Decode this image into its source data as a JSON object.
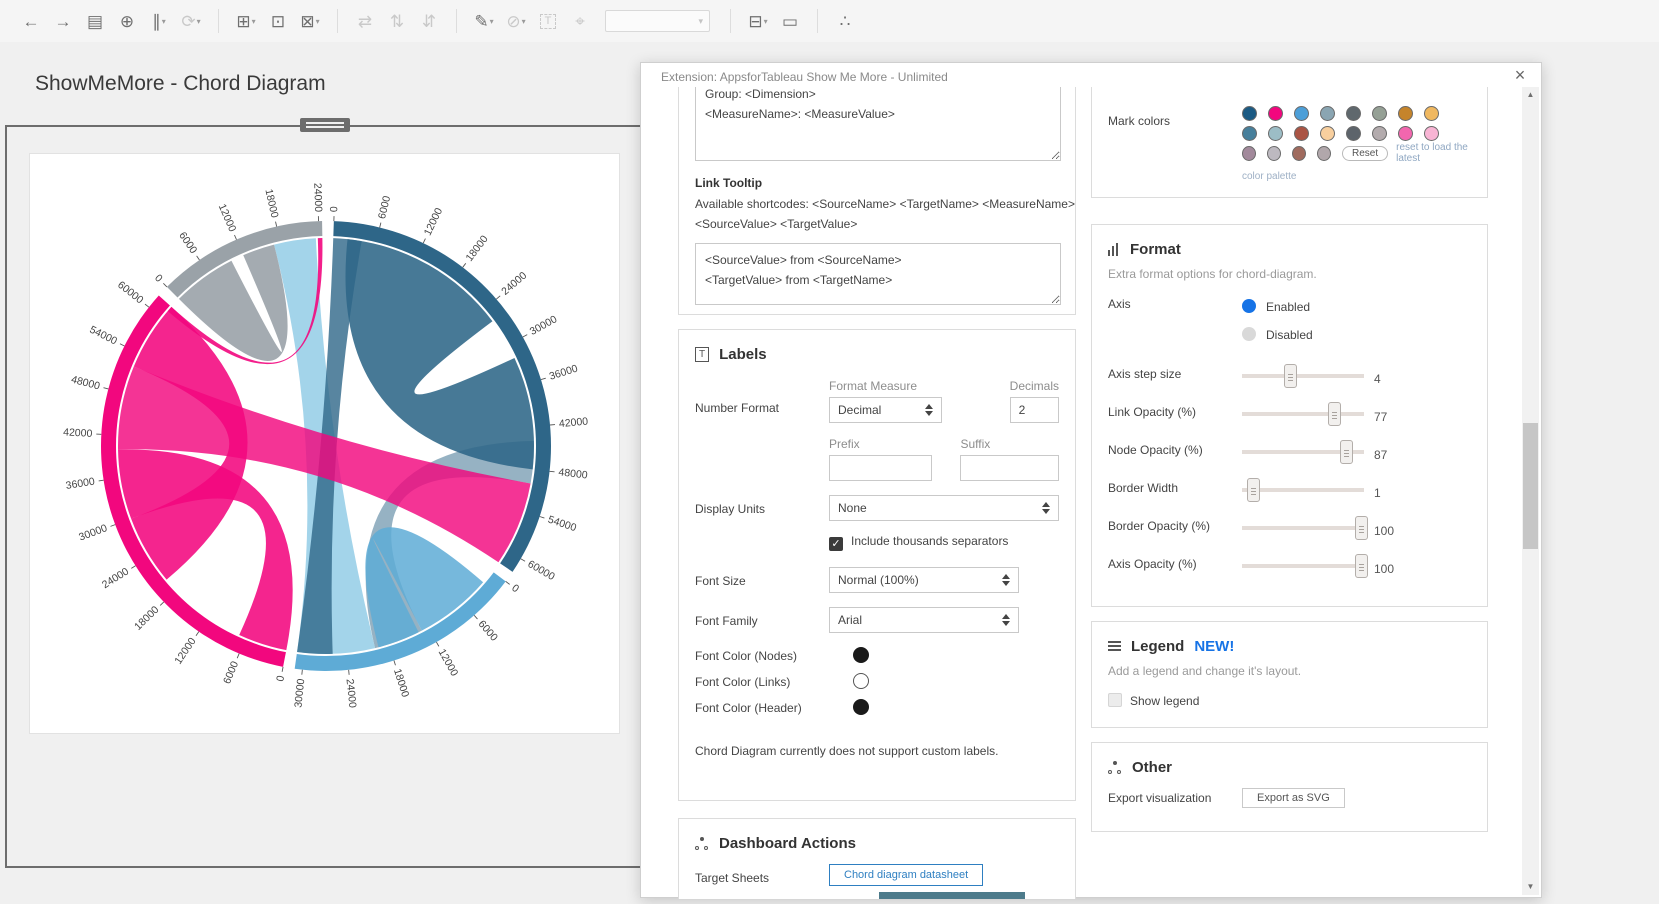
{
  "toolbar": {
    "items": [
      {
        "name": "undo",
        "glyph": "←",
        "enabled": true
      },
      {
        "name": "redo",
        "glyph": "→",
        "enabled": true
      },
      {
        "name": "save",
        "glyph": "▤",
        "enabled": true
      },
      {
        "name": "new-data-source",
        "glyph": "⊕",
        "enabled": true
      },
      {
        "name": "pause-auto-updates",
        "glyph": "∥",
        "enabled": true,
        "caret": true
      },
      {
        "name": "run-auto-updates",
        "glyph": "⟳",
        "enabled": false,
        "caret": true
      },
      {
        "separator": true
      },
      {
        "name": "new-worksheet",
        "glyph": "⊞",
        "enabled": true,
        "caret": true
      },
      {
        "name": "duplicate-sheet",
        "glyph": "⊡",
        "enabled": true
      },
      {
        "name": "clear-sheet",
        "glyph": "⊠",
        "enabled": true,
        "caret": true
      },
      {
        "separator": true
      },
      {
        "name": "swap-rows-columns",
        "glyph": "⇄",
        "enabled": false
      },
      {
        "name": "sort-ascending",
        "glyph": "⇅",
        "enabled": false
      },
      {
        "name": "sort-descending",
        "glyph": "⇵",
        "enabled": false
      },
      {
        "separator": true
      },
      {
        "name": "highlight",
        "glyph": "✎",
        "enabled": true,
        "caret": true
      },
      {
        "name": "group-members",
        "glyph": "⊘",
        "enabled": false,
        "caret": true
      },
      {
        "name": "text-box",
        "glyph": "T",
        "enabled": false,
        "boxed": true
      },
      {
        "name": "pin",
        "glyph": "⌖",
        "enabled": false
      },
      {
        "name": "fit-selector",
        "combo": true,
        "caret_glyph": "▾"
      },
      {
        "separator": true
      },
      {
        "name": "show-hide-cards",
        "glyph": "⊟",
        "enabled": true,
        "caret": true
      },
      {
        "name": "presentation-mode",
        "glyph": "▭",
        "enabled": true
      },
      {
        "separator": true
      },
      {
        "name": "share",
        "glyph": "∴",
        "enabled": true
      }
    ]
  },
  "canvas": {
    "title": "ShowMeMore - Chord Diagram"
  },
  "dialog": {
    "title": "Extension: AppsforTableau Show Me More - Unlimited",
    "close_glyph": "×",
    "tooltip_card": {
      "node_tooltip_value": "Group: <Dimension>\n<MeasureName>: <MeasureValue>",
      "link_tooltip_label": "Link Tooltip",
      "link_shortcodes": "Available shortcodes: <SourceName> <TargetName> <MeasureName> <SourceValue> <TargetValue>",
      "link_tooltip_value": "<SourceValue> from <SourceName>\n<TargetValue> from <TargetName>"
    },
    "labels_card": {
      "heading": "Labels",
      "number_format_label": "Number Format",
      "format_measure_label": "Format Measure",
      "format_measure_value": "Decimal",
      "decimals_label": "Decimals",
      "decimals_value": "2",
      "prefix_label": "Prefix",
      "suffix_label": "Suffix",
      "prefix_value": "",
      "suffix_value": "",
      "display_units_label": "Display Units",
      "display_units_value": "None",
      "thousands_label": "Include thousands separators",
      "thousands_checked": true,
      "check_glyph": "✓",
      "font_size_label": "Font Size",
      "font_size_value": "Normal (100%)",
      "font_family_label": "Font Family",
      "font_family_value": "Arial",
      "font_color_nodes_label": "Font Color (Nodes)",
      "font_color_nodes": "#1a1a1a",
      "font_color_links_label": "Font Color (Links)",
      "font_color_links": "#ffffff",
      "font_color_header_label": "Font Color (Header)",
      "font_color_header": "#1a1a1a",
      "note": "Chord Diagram currently does not support custom labels."
    },
    "dashboard_actions_card": {
      "heading": "Dashboard Actions",
      "target_sheets_label": "Target Sheets",
      "target_sheet_button": "Chord diagram datasheet",
      "partial_row_color": "#4d7b8b"
    },
    "mark_colors_card": {
      "label": "Mark colors",
      "reset_button": "Reset",
      "reset_hint": "reset to load the latest",
      "caption": "color palette",
      "swatch_rows": [
        [
          "#1b5a83",
          "#f2067e",
          "#4d9fd8",
          "#8aa5b2",
          "#5f686d",
          "#95a095",
          "#c5842b",
          "#f0b860"
        ],
        [
          "#477f9b",
          "#9cbdc6",
          "#aa5444",
          "#f8cf9e",
          "#5d646b",
          "#b3abad",
          "#f266ae",
          "#f8b4d4"
        ],
        [
          "#a2899b",
          "#bdb9c0",
          "#a06b5e",
          "#b1a7ab"
        ]
      ]
    },
    "format_card": {
      "heading": "Format",
      "description": "Extra format options for chord-diagram.",
      "axis_label": "Axis",
      "axis_options": [
        "Enabled",
        "Disabled"
      ],
      "axis_selected": "Enabled",
      "sliders": [
        {
          "label": "Axis step size",
          "value": "4",
          "pct": 40
        },
        {
          "label": "Link Opacity (%)",
          "value": "77",
          "pct": 76
        },
        {
          "label": "Node Opacity (%)",
          "value": "87",
          "pct": 86
        },
        {
          "label": "Border Width",
          "value": "1",
          "pct": 10
        },
        {
          "label": "Border Opacity (%)",
          "value": "100",
          "pct": 98
        },
        {
          "label": "Axis Opacity (%)",
          "value": "100",
          "pct": 98
        }
      ]
    },
    "legend_card": {
      "heading": "Legend",
      "new_badge": "NEW!",
      "description": "Add a legend and change it's layout.",
      "show_legend_label": "Show legend",
      "show_legend_checked": false
    },
    "other_card": {
      "heading": "Other",
      "export_label": "Export visualization",
      "export_button": "Export as SVG"
    },
    "scrollbar": {
      "up": "▲",
      "down": "▼"
    }
  },
  "chart_data": {
    "type": "chord",
    "title": "ShowMeMore - Chord Diagram",
    "axis_enabled": true,
    "axis_step": 6000,
    "tick_label_color": "#444444",
    "groups": [
      {
        "name": "steel-blue",
        "color": "#2e6688",
        "start_angle": 2,
        "end_angle": 124,
        "units": 62000,
        "tick_max": 60000
      },
      {
        "name": "light-blue",
        "color": "#5eabd6",
        "start_angle": 127,
        "end_angle": 188,
        "units": 31000,
        "tick_max": 30000
      },
      {
        "name": "pink",
        "color": "#f2077e",
        "start_angle": 191,
        "end_angle": 312,
        "units": 62000,
        "tick_max": 60000
      },
      {
        "name": "gray",
        "color": "#9aa2a8",
        "start_angle": 315,
        "end_angle": 359,
        "units": 24500,
        "tick_max": 24000
      }
    ],
    "ribbons": [
      {
        "source": [
          "steel-blue",
          2000,
          26000
        ],
        "target": [
          "steel-blue",
          32000,
          48000
        ],
        "color": "#2e6688",
        "opacity": 0.88
      },
      {
        "source": [
          "steel-blue",
          44000,
          50000
        ],
        "target": [
          "light-blue",
          13000,
          20000
        ],
        "color": "#2e6688",
        "opacity": 0.5
      },
      {
        "source": [
          "light-blue",
          20000,
          31000
        ],
        "target": [
          "gray",
          17000,
          23500
        ],
        "color": "#7fc3e2",
        "opacity": 0.72
      },
      {
        "source": [
          "light-blue",
          2000,
          13000
        ],
        "target": [
          "light-blue",
          13500,
          19500
        ],
        "color": "#5eabd6",
        "opacity": 0.85
      },
      {
        "source": [
          "steel-blue",
          0,
          4000
        ],
        "target": [
          "light-blue",
          26000,
          31000
        ],
        "color": "#2e6688",
        "opacity": 0.8
      },
      {
        "source": [
          "gray",
          0,
          10000
        ],
        "target": [
          "gray",
          12000,
          17000
        ],
        "color": "#9aa2a8",
        "opacity": 0.9
      },
      {
        "source": [
          "pink",
          40000,
          52000
        ],
        "target": [
          "steel-blue",
          50000,
          62000
        ],
        "color": "#f2077e",
        "opacity": 0.82
      },
      {
        "source": [
          "pink",
          52000,
          62000
        ],
        "target": [
          "pink",
          20000,
          30000
        ],
        "color": "#f2077e",
        "opacity": 0.88
      },
      {
        "source": [
          "pink",
          0,
          7000
        ],
        "target": [
          "pink",
          30000,
          40000
        ],
        "color": "#f2077e",
        "opacity": 0.88
      },
      {
        "source": [
          "pink",
          61200,
          62000
        ],
        "target": [
          "gray",
          23800,
          24500
        ],
        "color": "#f2077e",
        "opacity": 0.9
      }
    ]
  }
}
